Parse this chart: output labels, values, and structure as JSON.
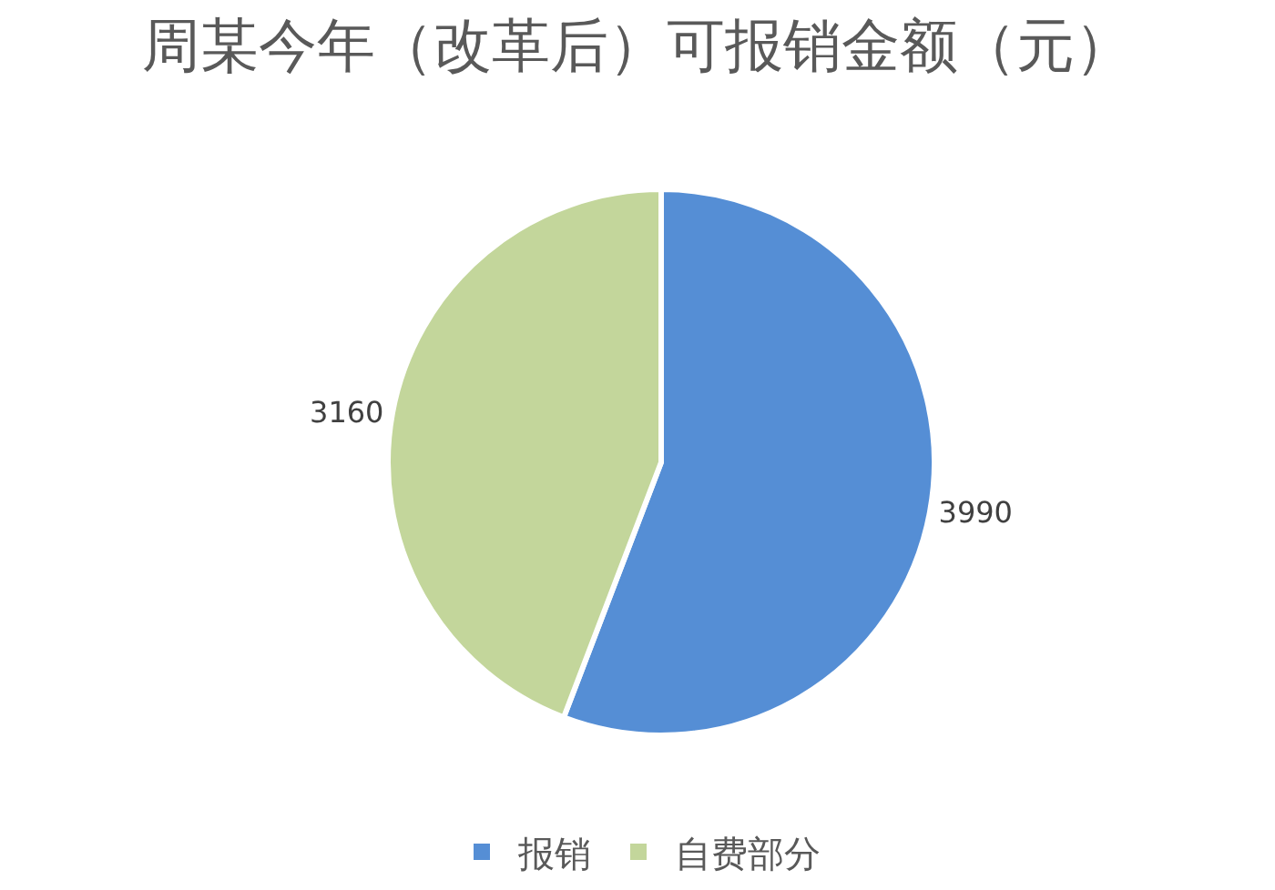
{
  "chart_data": {
    "type": "pie",
    "title": "周某今年（改革后）可报销金额（元）",
    "categories": [
      "报销",
      "自费部分"
    ],
    "values": [
      3990,
      3160
    ],
    "colors": [
      "#558ed5",
      "#c3d69b"
    ],
    "data_labels": true,
    "legend": "bottom"
  }
}
